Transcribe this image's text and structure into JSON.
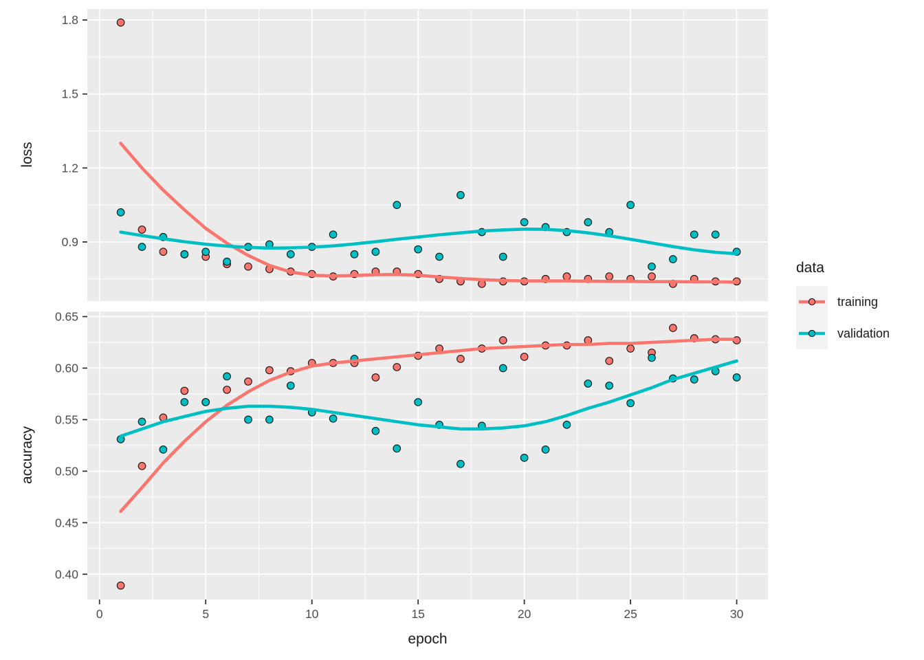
{
  "chart_data": {
    "type": "scatter",
    "title": "",
    "description": "Faceted training-history plot: loss and accuracy vs epoch, scatter points with loess smooth lines, for training and validation data",
    "x_axis": {
      "label": "epoch",
      "tick_values": [
        0,
        5,
        10,
        15,
        20,
        25,
        30
      ],
      "tick_labels": [
        "0",
        "5",
        "10",
        "15",
        "20",
        "25",
        "30"
      ],
      "minor_ticks": [
        2.5,
        7.5,
        12.5,
        17.5,
        22.5,
        27.5
      ],
      "range": [
        -0.574,
        31.47
      ]
    },
    "legend": {
      "title": "data",
      "position": "right",
      "entries": [
        {
          "label": "training",
          "color": "#F8766D"
        },
        {
          "label": "validation",
          "color": "#00BFC4"
        }
      ]
    },
    "x": [
      1,
      2,
      3,
      4,
      5,
      6,
      7,
      8,
      9,
      10,
      11,
      12,
      13,
      14,
      15,
      16,
      17,
      18,
      19,
      20,
      21,
      22,
      23,
      24,
      25,
      26,
      27,
      28,
      29,
      30
    ],
    "facets": [
      {
        "y_label": "loss",
        "range": [
          0.66,
          1.845
        ],
        "tick_values": [
          0.9,
          1.2,
          1.5,
          1.8
        ],
        "tick_labels": [
          "0.9",
          "1.2",
          "1.5",
          "1.8"
        ],
        "minor_ticks": [
          0.75,
          1.05,
          1.35,
          1.65
        ],
        "series": [
          {
            "name": "training",
            "color": "#F8766D",
            "points": [
              1.79,
              0.95,
              0.86,
              0.85,
              0.84,
              0.81,
              0.8,
              0.79,
              0.78,
              0.77,
              0.76,
              0.77,
              0.78,
              0.78,
              0.77,
              0.75,
              0.74,
              0.73,
              0.74,
              0.74,
              0.75,
              0.76,
              0.75,
              0.76,
              0.75,
              0.76,
              0.73,
              0.75,
              0.74,
              0.74
            ],
            "smooth": [
              1.3,
              1.2,
              1.11,
              1.03,
              0.955,
              0.895,
              0.845,
              0.805,
              0.778,
              0.765,
              0.762,
              0.764,
              0.767,
              0.768,
              0.765,
              0.758,
              0.752,
              0.747,
              0.744,
              0.742,
              0.742,
              0.742,
              0.741,
              0.74,
              0.74,
              0.739,
              0.739,
              0.738,
              0.738,
              0.737
            ]
          },
          {
            "name": "validation",
            "color": "#00BFC4",
            "points": [
              1.02,
              0.88,
              0.92,
              0.85,
              0.86,
              0.82,
              0.88,
              0.89,
              0.85,
              0.88,
              0.93,
              0.85,
              0.86,
              1.05,
              0.87,
              0.84,
              1.09,
              0.94,
              0.84,
              0.98,
              0.96,
              0.94,
              0.98,
              0.94,
              1.05,
              0.8,
              0.83,
              0.93,
              0.93,
              0.86
            ],
            "smooth": [
              0.94,
              0.926,
              0.913,
              0.901,
              0.891,
              0.883,
              0.878,
              0.875,
              0.876,
              0.879,
              0.884,
              0.892,
              0.901,
              0.911,
              0.92,
              0.929,
              0.937,
              0.944,
              0.949,
              0.952,
              0.951,
              0.946,
              0.937,
              0.925,
              0.911,
              0.896,
              0.881,
              0.868,
              0.858,
              0.852
            ]
          }
        ]
      },
      {
        "y_label": "accuracy",
        "range": [
          0.3755,
          0.655
        ],
        "tick_values": [
          0.4,
          0.45,
          0.5,
          0.55,
          0.6,
          0.65
        ],
        "tick_labels": [
          "0.40",
          "0.45",
          "0.50",
          "0.55",
          "0.60",
          "0.65"
        ],
        "minor_ticks": [
          0.425,
          0.475,
          0.525,
          0.575,
          0.625
        ],
        "series": [
          {
            "name": "training",
            "color": "#F8766D",
            "points": [
              0.389,
              0.505,
              0.552,
              0.578,
              0.567,
              0.579,
              0.587,
              0.598,
              0.597,
              0.605,
              0.605,
              0.605,
              0.591,
              0.601,
              0.612,
              0.619,
              0.609,
              0.619,
              0.627,
              0.611,
              0.622,
              0.622,
              0.627,
              0.607,
              0.619,
              0.615,
              0.639,
              0.629,
              0.628,
              0.627
            ],
            "smooth": [
              0.461,
              0.484,
              0.508,
              0.529,
              0.548,
              0.564,
              0.577,
              0.588,
              0.596,
              0.602,
              0.605,
              0.607,
              0.609,
              0.611,
              0.613,
              0.615,
              0.617,
              0.619,
              0.62,
              0.621,
              0.622,
              0.623,
              0.623,
              0.624,
              0.624,
              0.625,
              0.626,
              0.627,
              0.628,
              0.628
            ]
          },
          {
            "name": "validation",
            "color": "#00BFC4",
            "points": [
              0.531,
              0.548,
              0.521,
              0.567,
              0.567,
              0.592,
              0.55,
              0.55,
              0.583,
              0.557,
              0.551,
              0.609,
              0.539,
              0.522,
              0.567,
              0.545,
              0.507,
              0.544,
              0.6,
              0.513,
              0.521,
              0.545,
              0.585,
              0.583,
              0.566,
              0.61,
              0.59,
              0.589,
              0.597,
              0.591
            ],
            "smooth": [
              0.534,
              0.541,
              0.548,
              0.553,
              0.558,
              0.561,
              0.563,
              0.563,
              0.562,
              0.56,
              0.557,
              0.554,
              0.551,
              0.548,
              0.545,
              0.543,
              0.541,
              0.541,
              0.542,
              0.544,
              0.548,
              0.554,
              0.561,
              0.567,
              0.574,
              0.581,
              0.589,
              0.595,
              0.601,
              0.607
            ]
          }
        ]
      }
    ],
    "style": {
      "background": "#FFFFFF",
      "panel_bg": "#EBEBEB",
      "grid_color": "#FFFFFF",
      "tick_label_color": "#4D4D4D",
      "axis_title_color": "#1A1A1A",
      "tick_mark_color": "#333333",
      "point_stroke": "#000000"
    }
  }
}
